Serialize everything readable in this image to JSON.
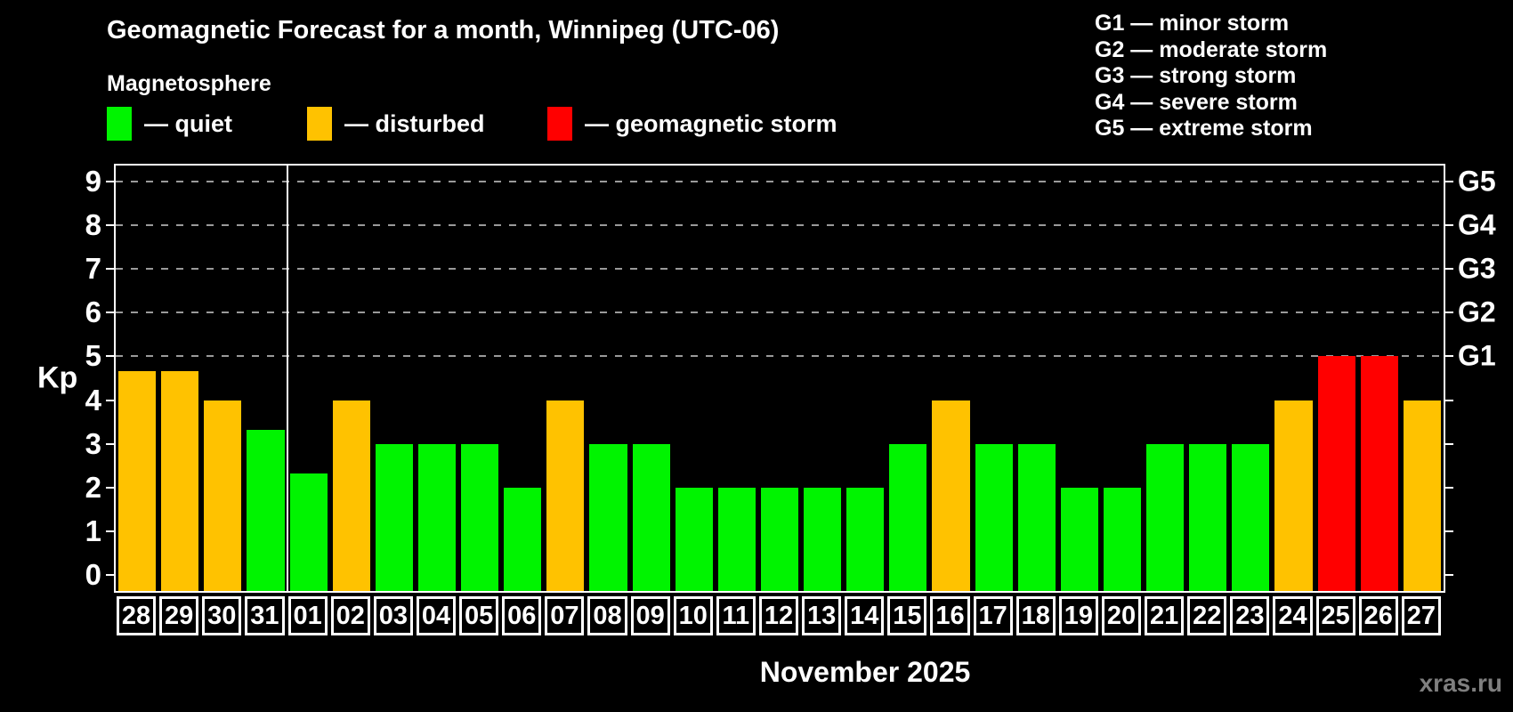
{
  "title": "Geomagnetic Forecast for a month, Winnipeg (UTC-06)",
  "subtitle": "Magnetosphere",
  "legend": [
    {
      "key": "quiet",
      "label": "— quiet"
    },
    {
      "key": "disturbed",
      "label": "— disturbed"
    },
    {
      "key": "storm",
      "label": "— geomagnetic storm"
    }
  ],
  "g_scale_legend": [
    "G1 — minor storm",
    "G2 — moderate storm",
    "G3 — strong storm",
    "G4 — severe storm",
    "G5 — extreme storm"
  ],
  "watermark": "xras.ru",
  "chart_data": {
    "type": "bar",
    "ylabel": "Kp",
    "xlabel": "November 2025",
    "ylim": [
      0,
      9
    ],
    "y_ticks": [
      0,
      1,
      2,
      3,
      4,
      5,
      6,
      7,
      8,
      9
    ],
    "grid_values": [
      5,
      6,
      7,
      8,
      9
    ],
    "right_axis": [
      {
        "label": "G1",
        "value": 5
      },
      {
        "label": "G2",
        "value": 6
      },
      {
        "label": "G3",
        "value": 7
      },
      {
        "label": "G4",
        "value": 8
      },
      {
        "label": "G5",
        "value": 9
      }
    ],
    "categories": [
      "28",
      "29",
      "30",
      "31",
      "01",
      "02",
      "03",
      "04",
      "05",
      "06",
      "07",
      "08",
      "09",
      "10",
      "11",
      "12",
      "13",
      "14",
      "15",
      "16",
      "17",
      "18",
      "19",
      "20",
      "21",
      "22",
      "23",
      "24",
      "25",
      "26",
      "27"
    ],
    "values": [
      4.67,
      4.67,
      4,
      3.33,
      2.33,
      4,
      3,
      3,
      3,
      2,
      4,
      3,
      3,
      2,
      2,
      2,
      2,
      2,
      3,
      4,
      3,
      3,
      2,
      2,
      3,
      3,
      3,
      4,
      5,
      5,
      4
    ],
    "levels": [
      "disturbed",
      "disturbed",
      "disturbed",
      "quiet",
      "quiet",
      "disturbed",
      "quiet",
      "quiet",
      "quiet",
      "quiet",
      "disturbed",
      "quiet",
      "quiet",
      "quiet",
      "quiet",
      "quiet",
      "quiet",
      "quiet",
      "quiet",
      "disturbed",
      "quiet",
      "quiet",
      "quiet",
      "quiet",
      "quiet",
      "quiet",
      "quiet",
      "disturbed",
      "storm",
      "storm",
      "disturbed"
    ],
    "palette": {
      "quiet": "#00f400",
      "disturbed": "#ffc200",
      "storm": "#ff0000"
    },
    "month_separator_after_index": 3,
    "legend_position": "top-left",
    "grid": "dashed-horizontal"
  }
}
